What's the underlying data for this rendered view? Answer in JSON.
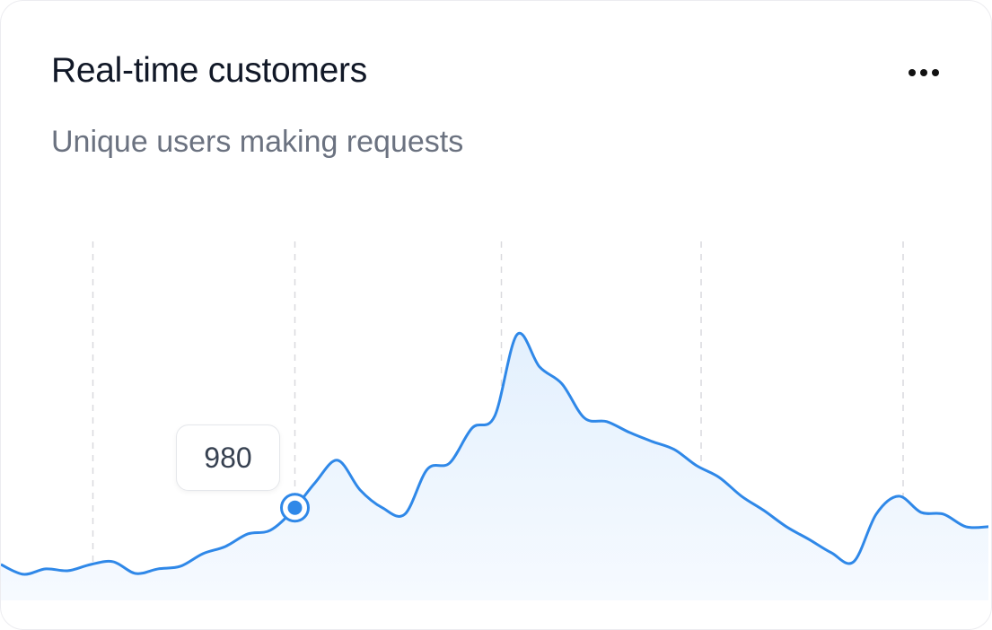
{
  "card": {
    "title": "Real-time customers",
    "subtitle": "Unique users making requests",
    "menu_icon": "more-horizontal-icon"
  },
  "chart_data": {
    "type": "area",
    "title": "Real-time customers",
    "subtitle": "Unique users making requests",
    "xlabel": "",
    "ylabel": "",
    "ylim": [
      0,
      4300
    ],
    "grid": "vertical dashed",
    "x": [
      0,
      1,
      2,
      3,
      4,
      5,
      6,
      7,
      8,
      9,
      10,
      11,
      12,
      13,
      14,
      15,
      16,
      17,
      18,
      19,
      20,
      21,
      22,
      23,
      24,
      25,
      26,
      27,
      28,
      29,
      30,
      31,
      32,
      33,
      34,
      35,
      36,
      37,
      38,
      39,
      40,
      41,
      42,
      43,
      44
    ],
    "values": [
      380,
      276,
      333,
      314,
      380,
      409,
      285,
      333,
      361,
      494,
      570,
      703,
      741,
      950,
      1245,
      1482,
      1169,
      979,
      912,
      1387,
      1454,
      1824,
      1948,
      2812,
      2470,
      2290,
      1929,
      1891,
      1777,
      1682,
      1596,
      1425,
      1302,
      1102,
      950,
      779,
      646,
      504,
      409,
      912,
      1102,
      931,
      912,
      779,
      779
    ],
    "gridlines_x": [
      4.1,
      13.1,
      22.3,
      31.2,
      40.2
    ],
    "highlight": {
      "x": 13.1,
      "value": 980,
      "label": "980"
    },
    "colors": {
      "line": "#2f88e8",
      "fill": "#eef6fe",
      "grid": "#d9d9de"
    }
  }
}
